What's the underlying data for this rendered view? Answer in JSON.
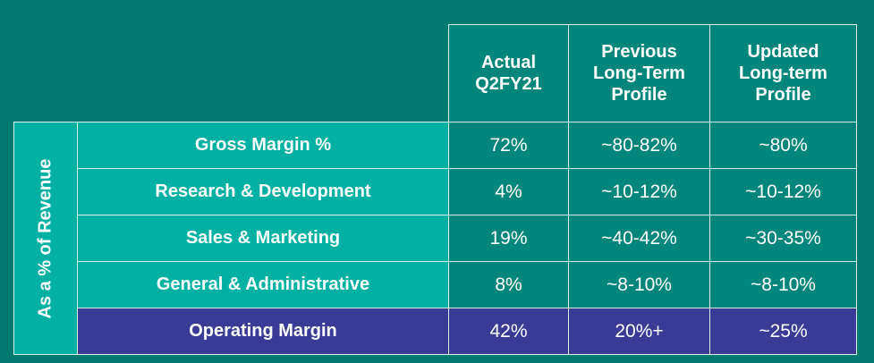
{
  "table": {
    "side_label": "As a % of Revenue",
    "headers": [
      "Actual Q2FY21",
      "Previous Long-Term Profile",
      "Updated Long-term Profile"
    ],
    "header_lines": [
      [
        "Actual",
        "Q2FY21"
      ],
      [
        "Previous",
        "Long-Term",
        "Profile"
      ],
      [
        "Updated",
        "Long-term",
        "Profile"
      ]
    ],
    "rows": [
      {
        "label": "Gross Margin %",
        "values": [
          "72%",
          "~80-82%",
          "~80%"
        ]
      },
      {
        "label": "Research & Development",
        "values": [
          "4%",
          "~10-12%",
          "~10-12%"
        ]
      },
      {
        "label": "Sales & Marketing",
        "values": [
          "19%",
          "~40-42%",
          "~30-35%"
        ]
      },
      {
        "label": "General & Administrative",
        "values": [
          "8%",
          "~8-10%",
          "~8-10%"
        ]
      },
      {
        "label": "Operating Margin",
        "values": [
          "42%",
          "20%+",
          "~25%"
        ]
      }
    ]
  }
}
